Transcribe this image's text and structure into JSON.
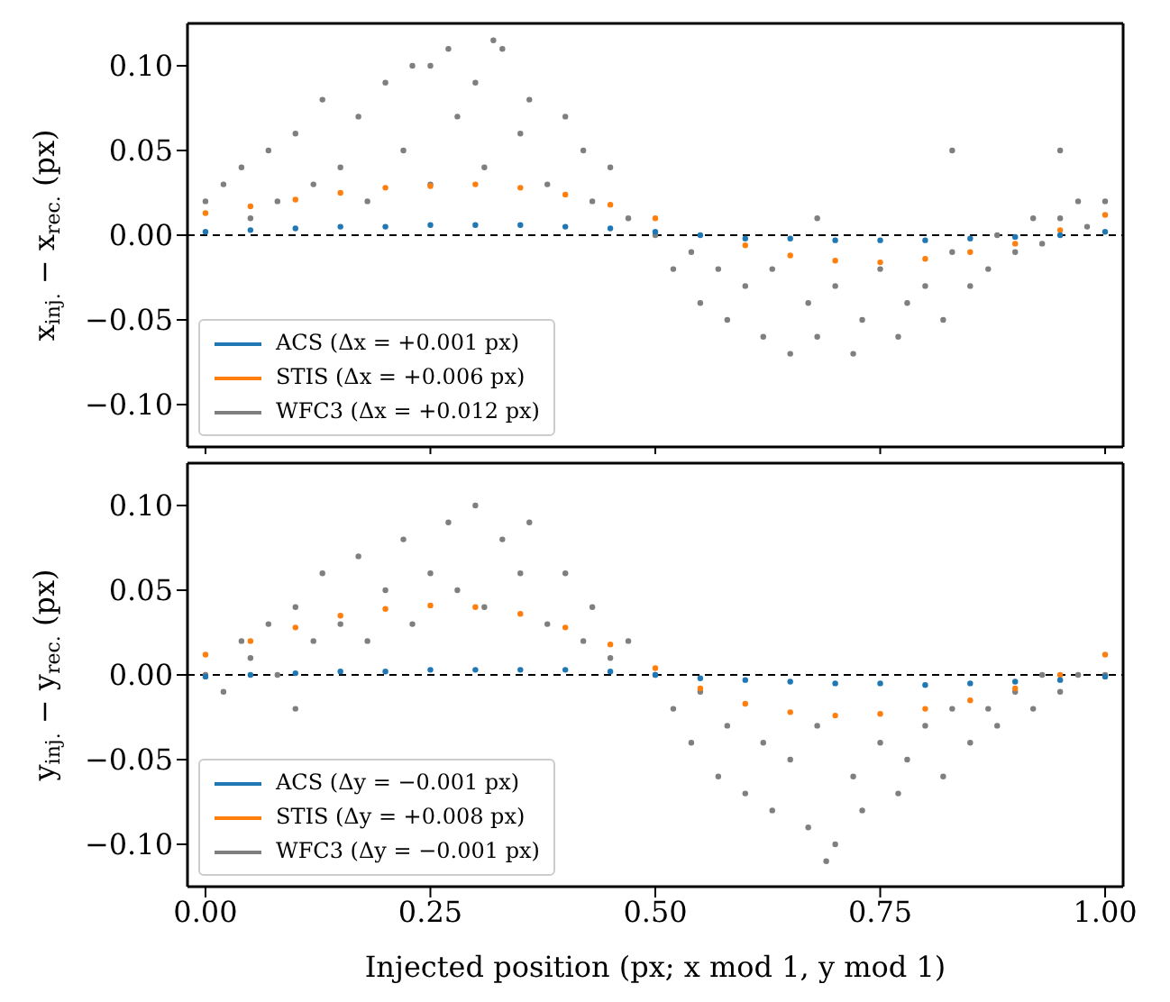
{
  "chart_data": [
    {
      "type": "scatter",
      "ylabel": "x$_{inj.}$ − x$_{rec.}$ (px)",
      "xlim": [
        -0.02,
        1.02
      ],
      "xticks": [
        0,
        0.25,
        0.5,
        0.75,
        1
      ],
      "ylim": [
        -0.125,
        0.125
      ],
      "yticks": [
        {
          "value": -0.1,
          "label": "−0.10"
        },
        {
          "value": -0.05,
          "label": "−0.05"
        },
        {
          "value": 0,
          "label": "0.00"
        },
        {
          "value": 0.05,
          "label": "0.05"
        },
        {
          "value": 0.1,
          "label": "0.10"
        }
      ],
      "tick_labels": "y",
      "legend": "bottom left",
      "marker": "circle",
      "ref_lines": [
        {
          "axis": "y",
          "value": 0,
          "line_style": "dashed",
          "color": "#000000"
        }
      ],
      "series": [
        {
          "name": "WFC3 (Δx = +0.012 px)",
          "color": "#7f7f7f",
          "x": [
            0,
            0.02,
            0.04,
            0.05,
            0.07,
            0.08,
            0.1,
            0.12,
            0.13,
            0.15,
            0.17,
            0.18,
            0.2,
            0.22,
            0.23,
            0.25,
            0.27,
            0.28,
            0.3,
            0.31,
            0.33,
            0.35,
            0.36,
            0.38,
            0.4,
            0.42,
            0.43,
            0.45,
            0.47,
            0.5,
            0.52,
            0.54,
            0.55,
            0.57,
            0.58,
            0.6,
            0.62,
            0.63,
            0.65,
            0.67,
            0.68,
            0.7,
            0.72,
            0.73,
            0.75,
            0.77,
            0.78,
            0.8,
            0.82,
            0.83,
            0.85,
            0.87,
            0.88,
            0.9,
            0.92,
            0.93,
            0.95,
            0.97,
            0.98,
            1,
            0.83,
            0.95,
            0.68,
            0.25,
            0.32
          ],
          "values": [
            0.02,
            0.03,
            0.04,
            0.01,
            0.05,
            0.02,
            0.06,
            0.03,
            0.08,
            0.04,
            0.07,
            0.02,
            0.09,
            0.05,
            0.1,
            0.03,
            0.11,
            0.07,
            0.09,
            0.04,
            0.11,
            0.06,
            0.08,
            0.03,
            0.07,
            0.05,
            0.02,
            0.04,
            0.01,
            0,
            -0.02,
            -0.01,
            -0.04,
            -0.02,
            -0.05,
            -0.03,
            -0.06,
            -0.02,
            -0.07,
            -0.04,
            -0.06,
            -0.03,
            -0.07,
            -0.05,
            -0.02,
            -0.06,
            -0.04,
            -0.03,
            -0.05,
            -0.01,
            -0.03,
            -0.02,
            0,
            -0.01,
            0.01,
            -0.005,
            0.01,
            0.02,
            0.005,
            0.02,
            0.05,
            0.05,
            0.01,
            0.1,
            0.115
          ]
        },
        {
          "name": "STIS (Δx = +0.006 px)",
          "color": "#ff7f0e",
          "x": [
            0,
            0.05,
            0.1,
            0.15,
            0.2,
            0.25,
            0.3,
            0.35,
            0.4,
            0.45,
            0.5,
            0.55,
            0.6,
            0.65,
            0.7,
            0.75,
            0.8,
            0.85,
            0.9,
            0.95,
            1
          ],
          "values": [
            0.013,
            0.017,
            0.021,
            0.025,
            0.028,
            0.029,
            0.03,
            0.028,
            0.024,
            0.018,
            0.01,
            null,
            -0.006,
            -0.012,
            -0.015,
            -0.016,
            -0.014,
            -0.01,
            -0.005,
            0.003,
            0.012
          ]
        },
        {
          "name": "ACS (Δx = +0.001 px)",
          "color": "#1f77b4",
          "x": [
            0,
            0.05,
            0.1,
            0.15,
            0.2,
            0.25,
            0.3,
            0.35,
            0.4,
            0.45,
            0.5,
            0.55,
            0.6,
            0.65,
            0.7,
            0.75,
            0.8,
            0.85,
            0.9,
            0.95,
            1
          ],
          "values": [
            0.002,
            0.003,
            0.004,
            0.005,
            0.005,
            0.006,
            0.006,
            0.006,
            0.005,
            0.004,
            0.002,
            0,
            -0.002,
            -0.002,
            -0.003,
            -0.003,
            -0.003,
            -0.002,
            -0.001,
            0,
            0.002
          ]
        }
      ]
    },
    {
      "type": "scatter",
      "ylabel": "y$_{inj.}$ − y$_{rec.}$ (px)",
      "xlabel": "Injected position (px; x mod 1, y mod 1)",
      "xlim": [
        -0.02,
        1.02
      ],
      "xticks": [
        {
          "value": 0,
          "label": "0.00"
        },
        {
          "value": 0.25,
          "label": "0.25"
        },
        {
          "value": 0.5,
          "label": "0.50"
        },
        {
          "value": 0.75,
          "label": "0.75"
        },
        {
          "value": 1,
          "label": "1.00"
        }
      ],
      "ylim": [
        -0.125,
        0.125
      ],
      "yticks": [
        {
          "value": -0.1,
          "label": "−0.10"
        },
        {
          "value": -0.05,
          "label": "−0.05"
        },
        {
          "value": 0,
          "label": "0.00"
        },
        {
          "value": 0.05,
          "label": "0.05"
        },
        {
          "value": 0.1,
          "label": "0.10"
        }
      ],
      "legend": "bottom left",
      "marker": "circle",
      "ref_lines": [
        {
          "axis": "y",
          "value": 0,
          "line_style": "dashed",
          "color": "#000000"
        }
      ],
      "series": [
        {
          "name": "WFC3 (Δy = −0.001 px)",
          "color": "#7f7f7f",
          "x": [
            0,
            0.02,
            0.04,
            0.05,
            0.07,
            0.08,
            0.1,
            0.12,
            0.13,
            0.15,
            0.17,
            0.18,
            0.2,
            0.22,
            0.23,
            0.25,
            0.27,
            0.28,
            0.3,
            0.31,
            0.33,
            0.35,
            0.36,
            0.38,
            0.4,
            0.42,
            0.43,
            0.45,
            0.47,
            0.5,
            0.52,
            0.54,
            0.55,
            0.57,
            0.58,
            0.6,
            0.62,
            0.63,
            0.65,
            0.67,
            0.68,
            0.7,
            0.72,
            0.73,
            0.75,
            0.77,
            0.78,
            0.8,
            0.82,
            0.83,
            0.85,
            0.87,
            0.88,
            0.9,
            0.92,
            0.93,
            0.95,
            0.97,
            1,
            0.1,
            0.69
          ],
          "values": [
            0,
            -0.01,
            0.02,
            0.01,
            0.03,
            0,
            0.04,
            0.02,
            0.06,
            0.03,
            0.07,
            0.02,
            0.05,
            0.08,
            0.03,
            0.06,
            0.09,
            0.05,
            0.1,
            0.04,
            0.08,
            0.06,
            0.09,
            0.03,
            0.06,
            0.02,
            0.04,
            0.01,
            0.02,
            0,
            -0.02,
            -0.04,
            -0.01,
            -0.06,
            -0.03,
            -0.07,
            -0.04,
            -0.08,
            -0.05,
            -0.09,
            -0.03,
            -0.1,
            -0.06,
            -0.08,
            -0.04,
            -0.07,
            -0.05,
            -0.03,
            -0.06,
            -0.02,
            -0.04,
            -0.02,
            -0.03,
            -0.01,
            -0.02,
            0,
            -0.01,
            0,
            0,
            -0.02,
            -0.11
          ]
        },
        {
          "name": "STIS (Δy = +0.008 px)",
          "color": "#ff7f0e",
          "x": [
            0,
            0.05,
            0.1,
            0.15,
            0.2,
            0.25,
            0.3,
            0.35,
            0.4,
            0.45,
            0.5,
            0.55,
            0.6,
            0.65,
            0.7,
            0.75,
            0.8,
            0.85,
            0.9,
            0.95,
            1
          ],
          "values": [
            0.012,
            0.02,
            0.028,
            0.035,
            0.039,
            0.041,
            0.04,
            0.036,
            0.028,
            0.018,
            0.004,
            -0.008,
            -0.017,
            -0.022,
            -0.024,
            -0.023,
            -0.02,
            -0.015,
            -0.008,
            0,
            0.012
          ]
        },
        {
          "name": "ACS (Δy = −0.001 px)",
          "color": "#1f77b4",
          "x": [
            0,
            0.05,
            0.1,
            0.15,
            0.2,
            0.25,
            0.3,
            0.35,
            0.4,
            0.45,
            0.5,
            0.55,
            0.6,
            0.65,
            0.7,
            0.75,
            0.8,
            0.85,
            0.9,
            0.95,
            1
          ],
          "values": [
            -0.001,
            0,
            0.001,
            0.002,
            0.002,
            0.003,
            0.003,
            0.003,
            0.003,
            0.002,
            0,
            -0.002,
            -0.003,
            -0.004,
            -0.005,
            -0.005,
            -0.006,
            -0.005,
            -0.004,
            -0.003,
            -0.001
          ]
        }
      ]
    }
  ]
}
